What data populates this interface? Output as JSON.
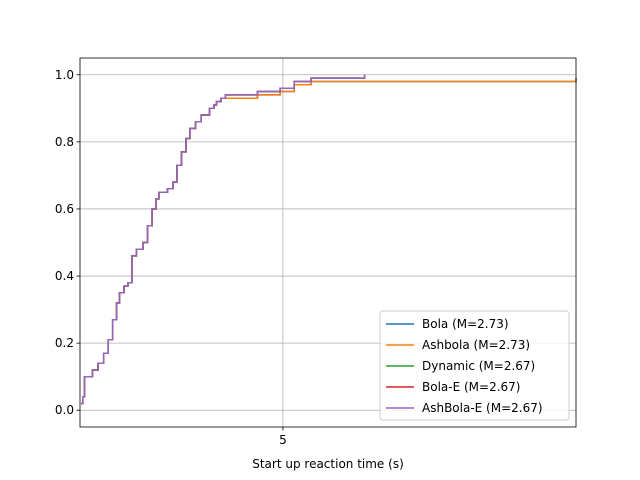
{
  "chart_data": {
    "type": "line",
    "drawstyle": "steps-post",
    "title": "",
    "xlabel": "Start up reaction time (s)",
    "ylabel": "",
    "xlim": [
      1.4,
      10.2
    ],
    "ylim": [
      -0.05,
      1.05
    ],
    "x_ticks": [
      5
    ],
    "x_tick_labels": [
      "5"
    ],
    "y_ticks": [
      0.0,
      0.2,
      0.4,
      0.6,
      0.8,
      1.0
    ],
    "y_tick_labels": [
      "0.0",
      "0.2",
      "0.4",
      "0.6",
      "0.8",
      "1.0"
    ],
    "grid": true,
    "legend_position": "lower-right",
    "series": [
      {
        "name": "Bola (M=2.73)",
        "color": "#1f77b4",
        "x": [
          1.42,
          1.45,
          1.48,
          1.52,
          1.56,
          1.62,
          1.72,
          1.82,
          1.9,
          1.98,
          2.05,
          2.1,
          2.18,
          2.25,
          2.32,
          2.4,
          2.45,
          2.52,
          2.6,
          2.68,
          2.75,
          2.8,
          2.85,
          2.95,
          3.05,
          3.12,
          3.2,
          3.28,
          3.35,
          3.45,
          3.55,
          3.62,
          3.7,
          3.78,
          3.82,
          3.9,
          3.98,
          4.05,
          4.15,
          4.3,
          4.55,
          4.95,
          5.2,
          5.5,
          10.2
        ],
        "y": [
          0.02,
          0.04,
          0.1,
          0.1,
          0.1,
          0.12,
          0.14,
          0.17,
          0.21,
          0.27,
          0.32,
          0.35,
          0.37,
          0.38,
          0.46,
          0.48,
          0.48,
          0.5,
          0.55,
          0.6,
          0.63,
          0.65,
          0.65,
          0.66,
          0.68,
          0.73,
          0.77,
          0.81,
          0.84,
          0.86,
          0.88,
          0.88,
          0.9,
          0.91,
          0.92,
          0.93,
          0.93,
          0.93,
          0.93,
          0.93,
          0.94,
          0.95,
          0.97,
          0.98,
          0.99
        ]
      },
      {
        "name": "Ashbola (M=2.73)",
        "color": "#ff7f0e",
        "x": [
          1.42,
          1.45,
          1.48,
          1.52,
          1.56,
          1.62,
          1.72,
          1.82,
          1.9,
          1.98,
          2.05,
          2.1,
          2.18,
          2.25,
          2.32,
          2.4,
          2.45,
          2.52,
          2.6,
          2.68,
          2.75,
          2.8,
          2.85,
          2.95,
          3.05,
          3.12,
          3.2,
          3.28,
          3.35,
          3.45,
          3.55,
          3.62,
          3.7,
          3.78,
          3.82,
          3.9,
          3.98,
          4.05,
          4.15,
          4.3,
          4.55,
          4.95,
          5.2,
          5.5,
          10.2
        ],
        "y": [
          0.02,
          0.04,
          0.1,
          0.1,
          0.1,
          0.12,
          0.14,
          0.17,
          0.21,
          0.27,
          0.32,
          0.35,
          0.37,
          0.38,
          0.46,
          0.48,
          0.48,
          0.5,
          0.55,
          0.6,
          0.63,
          0.65,
          0.65,
          0.66,
          0.68,
          0.73,
          0.77,
          0.81,
          0.84,
          0.86,
          0.88,
          0.88,
          0.9,
          0.91,
          0.92,
          0.93,
          0.93,
          0.93,
          0.93,
          0.93,
          0.94,
          0.95,
          0.97,
          0.98,
          0.99
        ]
      },
      {
        "name": "Dynamic (M=2.67)",
        "color": "#2ca02c",
        "x": [
          1.42,
          1.45,
          1.48,
          1.52,
          1.56,
          1.62,
          1.72,
          1.82,
          1.9,
          1.98,
          2.05,
          2.1,
          2.18,
          2.25,
          2.32,
          2.4,
          2.45,
          2.52,
          2.6,
          2.68,
          2.75,
          2.8,
          2.85,
          2.95,
          3.05,
          3.12,
          3.2,
          3.28,
          3.35,
          3.45,
          3.55,
          3.62,
          3.7,
          3.78,
          3.82,
          3.9,
          3.98,
          4.05,
          4.15,
          4.3,
          4.55,
          4.95,
          5.2,
          5.5,
          6.45
        ],
        "y": [
          0.02,
          0.04,
          0.1,
          0.1,
          0.1,
          0.12,
          0.14,
          0.17,
          0.21,
          0.27,
          0.32,
          0.35,
          0.37,
          0.38,
          0.46,
          0.48,
          0.48,
          0.5,
          0.55,
          0.6,
          0.63,
          0.65,
          0.65,
          0.66,
          0.68,
          0.73,
          0.77,
          0.81,
          0.84,
          0.86,
          0.88,
          0.88,
          0.9,
          0.91,
          0.92,
          0.93,
          0.94,
          0.94,
          0.94,
          0.94,
          0.95,
          0.96,
          0.98,
          0.99,
          1.0
        ]
      },
      {
        "name": "Bola-E (M=2.67)",
        "color": "#d62728",
        "x": [
          1.42,
          1.45,
          1.48,
          1.52,
          1.56,
          1.62,
          1.72,
          1.82,
          1.9,
          1.98,
          2.05,
          2.1,
          2.18,
          2.25,
          2.32,
          2.4,
          2.45,
          2.52,
          2.6,
          2.68,
          2.75,
          2.8,
          2.85,
          2.95,
          3.05,
          3.12,
          3.2,
          3.28,
          3.35,
          3.45,
          3.55,
          3.62,
          3.7,
          3.78,
          3.82,
          3.9,
          3.98,
          4.05,
          4.15,
          4.3,
          4.55,
          4.95,
          5.2,
          5.5,
          6.45
        ],
        "y": [
          0.02,
          0.04,
          0.1,
          0.1,
          0.1,
          0.12,
          0.14,
          0.17,
          0.21,
          0.27,
          0.32,
          0.35,
          0.37,
          0.38,
          0.46,
          0.48,
          0.48,
          0.5,
          0.55,
          0.6,
          0.63,
          0.65,
          0.65,
          0.66,
          0.68,
          0.73,
          0.77,
          0.81,
          0.84,
          0.86,
          0.88,
          0.88,
          0.9,
          0.91,
          0.92,
          0.93,
          0.94,
          0.94,
          0.94,
          0.94,
          0.95,
          0.96,
          0.98,
          0.99,
          1.0
        ]
      },
      {
        "name": "AshBola-E (M=2.67)",
        "color": "#9467bd",
        "x": [
          1.42,
          1.45,
          1.48,
          1.52,
          1.56,
          1.62,
          1.72,
          1.82,
          1.9,
          1.98,
          2.05,
          2.1,
          2.18,
          2.25,
          2.32,
          2.4,
          2.45,
          2.52,
          2.6,
          2.68,
          2.75,
          2.8,
          2.85,
          2.95,
          3.05,
          3.12,
          3.2,
          3.28,
          3.35,
          3.45,
          3.55,
          3.62,
          3.7,
          3.78,
          3.82,
          3.9,
          3.98,
          4.05,
          4.15,
          4.3,
          4.55,
          4.95,
          5.2,
          5.5,
          6.45
        ],
        "y": [
          0.02,
          0.04,
          0.1,
          0.1,
          0.1,
          0.12,
          0.14,
          0.17,
          0.21,
          0.27,
          0.32,
          0.35,
          0.37,
          0.38,
          0.46,
          0.48,
          0.48,
          0.5,
          0.55,
          0.6,
          0.63,
          0.65,
          0.65,
          0.66,
          0.68,
          0.73,
          0.77,
          0.81,
          0.84,
          0.86,
          0.88,
          0.88,
          0.9,
          0.91,
          0.92,
          0.93,
          0.94,
          0.94,
          0.94,
          0.94,
          0.95,
          0.96,
          0.98,
          0.99,
          1.0
        ]
      }
    ]
  }
}
